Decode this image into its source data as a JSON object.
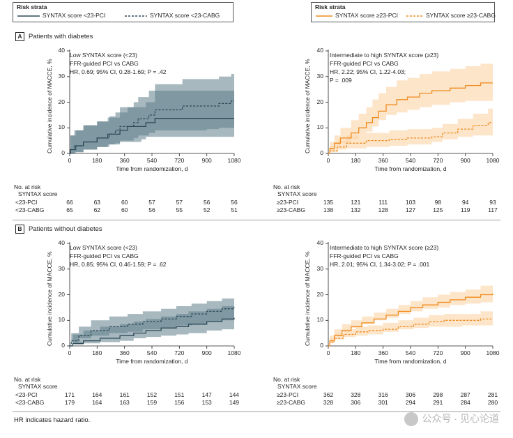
{
  "legend_left": {
    "title": "Risk strata",
    "items": [
      {
        "label": "SYNTAX score <23-PCI",
        "style": "solid"
      },
      {
        "label": "SYNTAX score <23-CABG",
        "style": "dashed"
      }
    ]
  },
  "legend_right": {
    "title": "Risk strata",
    "items": [
      {
        "label": "SYNTAX score ≥23-PCI",
        "style": "solid"
      },
      {
        "label": "SYNTAX score ≥23-CABG",
        "style": "dashed"
      }
    ]
  },
  "panel_a": {
    "letter": "A",
    "title": "Patients with diabetes"
  },
  "panel_b": {
    "letter": "B",
    "title": "Patients without diabetes"
  },
  "footnote": "HR indicates hazard ratio.",
  "watermark": "公众号 · 见心论道",
  "colors": {
    "low": "#2e4a57",
    "low_band": "#5f7d8b",
    "high": "#f08a1c",
    "high_band": "#fcd3a6"
  },
  "chart_data": [
    {
      "id": "a-low",
      "type": "line",
      "annotation": [
        "Low SYNTAX score (<23)",
        "FFR-guided PCI vs CABG",
        "HR, 0.69; 95% CI, 0.28-1.69; P = .42"
      ],
      "xlabel": "Time from randomization, d",
      "ylabel": "Cumulative incidence of MACCE, %",
      "xticks": [
        "0",
        "180",
        "360",
        "540",
        "720",
        "900",
        "1080"
      ],
      "yticks": [
        "0",
        "10",
        "20",
        "30",
        "40"
      ],
      "xlim": [
        0,
        1080
      ],
      "ylim": [
        0,
        40
      ],
      "color": "low",
      "series": [
        {
          "name": "SYNTAX score <23-PCI",
          "style": "solid",
          "x": [
            0,
            5,
            40,
            90,
            180,
            250,
            330,
            380,
            470,
            500,
            560,
            700,
            1080
          ],
          "y": [
            0,
            1.5,
            3.0,
            4.5,
            6.0,
            7.5,
            9.0,
            10.5,
            10.5,
            12.0,
            13.7,
            13.7,
            13.7
          ],
          "lower": [
            0,
            0,
            0,
            0.5,
            1.5,
            2.5,
            3.5,
            4.5,
            4.5,
            5.5,
            6.5,
            6.5,
            6.5
          ],
          "upper": [
            0,
            7,
            9,
            11,
            12.5,
            14,
            16,
            18,
            18,
            20,
            24.5,
            24.5,
            25
          ]
        },
        {
          "name": "SYNTAX score <23-CABG",
          "style": "dashed",
          "x": [
            0,
            5,
            30,
            90,
            180,
            260,
            300,
            330,
            420,
            450,
            520,
            560,
            740,
            900,
            980,
            1060,
            1080
          ],
          "y": [
            0,
            1.5,
            3.0,
            4.5,
            6.0,
            7.5,
            9.0,
            10.5,
            12.0,
            13.5,
            15.0,
            17.0,
            18.5,
            18.5,
            19.5,
            20.5,
            20.5
          ],
          "lower": [
            0,
            0,
            0,
            0.5,
            1.5,
            2.5,
            3.5,
            4.0,
            5.0,
            6.0,
            7.0,
            8.0,
            9.0,
            9.0,
            9.5,
            10.0,
            10.0
          ],
          "upper": [
            0,
            7,
            9,
            11,
            12.5,
            14.5,
            16,
            18,
            20,
            22,
            24.5,
            27,
            29,
            29,
            30,
            31,
            31
          ]
        }
      ],
      "risk_table": {
        "title": "No. at risk",
        "subtitle": "SYNTAX score",
        "rows": [
          {
            "label": "<23-PCI",
            "values": [
              "66",
              "63",
              "60",
              "57",
              "57",
              "56",
              "56"
            ]
          },
          {
            "label": "<23-CABG",
            "values": [
              "65",
              "62",
              "60",
              "56",
              "55",
              "52",
              "51"
            ]
          }
        ]
      }
    },
    {
      "id": "a-high",
      "type": "line",
      "annotation": [
        "Intermediate to high SYNTAX score (≥23)",
        "FFR-guided PCI vs CABG",
        "HR, 2.22; 95% CI, 1.22-4.03;",
        "P = .009"
      ],
      "xlabel": "Time from randomization, d",
      "ylabel": "Cumulative incidence of MACCE, %",
      "xticks": [
        "0",
        "180",
        "360",
        "540",
        "720",
        "900",
        "1080"
      ],
      "yticks": [
        "0",
        "10",
        "20",
        "30",
        "40"
      ],
      "xlim": [
        0,
        1080
      ],
      "ylim": [
        0,
        40
      ],
      "color": "high",
      "series": [
        {
          "name": "SYNTAX score ≥23-PCI",
          "style": "solid",
          "x": [
            0,
            10,
            40,
            80,
            150,
            200,
            250,
            290,
            330,
            380,
            450,
            520,
            600,
            680,
            800,
            900,
            1000,
            1080
          ],
          "y": [
            0,
            2,
            4,
            6,
            8,
            10,
            12,
            14,
            16.5,
            19,
            21,
            22,
            23.5,
            24.5,
            25.5,
            26.5,
            27.5,
            27.5
          ],
          "lower": [
            0,
            0.5,
            1.5,
            2.5,
            4,
            5.5,
            7,
            8.5,
            10.5,
            13,
            15,
            16,
            17,
            18,
            19,
            20,
            20.5,
            20.5
          ],
          "upper": [
            0,
            4.5,
            7,
            10,
            13,
            15.5,
            18,
            21,
            23.5,
            26,
            28.5,
            29.5,
            31,
            32,
            33,
            34,
            35,
            35
          ]
        },
        {
          "name": "SYNTAX score ≥23-CABG",
          "style": "dashed",
          "x": [
            0,
            10,
            60,
            120,
            250,
            400,
            520,
            680,
            750,
            850,
            950,
            1050,
            1080
          ],
          "y": [
            0,
            1,
            2.5,
            4,
            5,
            5.5,
            6,
            6.5,
            8,
            9.5,
            11,
            12,
            12
          ],
          "lower": [
            0,
            0,
            0.5,
            1.5,
            2,
            2.5,
            3,
            3.5,
            4.5,
            5.5,
            6.5,
            7,
            7
          ],
          "upper": [
            0,
            3,
            5,
            7,
            8,
            9,
            9.5,
            10,
            11.5,
            13.5,
            15.5,
            17.5,
            17.5
          ]
        }
      ],
      "risk_table": {
        "title": "No. at risk",
        "subtitle": "SYNTAX score",
        "rows": [
          {
            "label": "≥23-PCI",
            "values": [
              "135",
              "121",
              "111",
              "103",
              "98",
              "94",
              "93"
            ]
          },
          {
            "label": "≥23-CABG",
            "values": [
              "138",
              "132",
              "128",
              "127",
              "125",
              "119",
              "117"
            ]
          }
        ]
      }
    },
    {
      "id": "b-low",
      "type": "line",
      "annotation": [
        "Low SYNTAX score (<23)",
        "FFR-guided PCI vs CABG",
        "HR, 0.85; 95% CI, 0.46-1.59; P = .62"
      ],
      "xlabel": "Time from randomization, d",
      "ylabel": "Cumulative incidence of MACCE, %",
      "xticks": [
        "0",
        "180",
        "360",
        "540",
        "720",
        "900",
        "1080"
      ],
      "yticks": [
        "0",
        "10",
        "20",
        "30",
        "40"
      ],
      "xlim": [
        0,
        1080
      ],
      "ylim": [
        0,
        40
      ],
      "color": "low",
      "series": [
        {
          "name": "SYNTAX score <23-PCI",
          "style": "solid",
          "x": [
            0,
            20,
            90,
            200,
            330,
            420,
            500,
            600,
            700,
            780,
            900,
            1000,
            1080
          ],
          "y": [
            0,
            1,
            2,
            3,
            4,
            5,
            6,
            7,
            7.5,
            8.5,
            9.5,
            10.5,
            11
          ],
          "lower": [
            0,
            0,
            0.5,
            1,
            1.5,
            2,
            3,
            3.5,
            4,
            4.5,
            5,
            6,
            6.5
          ],
          "upper": [
            0,
            4.5,
            6,
            7.5,
            8.5,
            9.5,
            10.5,
            11.5,
            12.5,
            13.5,
            14.5,
            15.5,
            16.5
          ]
        },
        {
          "name": "SYNTAX score <23-CABG",
          "style": "dashed",
          "x": [
            0,
            10,
            60,
            140,
            260,
            380,
            480,
            600,
            700,
            800,
            900,
            1000,
            1080
          ],
          "y": [
            0,
            2,
            4,
            6,
            7.5,
            8.5,
            9.5,
            10.5,
            11.5,
            12.5,
            13.5,
            14.5,
            15
          ],
          "lower": [
            0,
            0.5,
            1.5,
            3,
            4,
            5,
            5.5,
            6.5,
            7,
            8,
            8.5,
            9.5,
            10
          ],
          "upper": [
            0,
            5,
            7.5,
            10,
            11.5,
            12.5,
            13.5,
            14.5,
            15.5,
            16.5,
            17.5,
            18.5,
            19.5
          ]
        }
      ],
      "risk_table": {
        "title": "No. at risk",
        "subtitle": "SYNTAX score",
        "rows": [
          {
            "label": "<23-PCI",
            "values": [
              "171",
              "164",
              "161",
              "152",
              "151",
              "147",
              "144"
            ]
          },
          {
            "label": "<23-CABG",
            "values": [
              "179",
              "164",
              "163",
              "159",
              "156",
              "153",
              "149"
            ]
          }
        ]
      }
    },
    {
      "id": "b-high",
      "type": "line",
      "annotation": [
        "Intermediate to high SYNTAX score (≥23)",
        "FFR-guided PCI vs CABG",
        "HR, 2.01; 95% CI, 1.34-3.02; P = .001"
      ],
      "xlabel": "Time from randomization, d",
      "ylabel": "Cumulative incidence of MACCE, %",
      "xticks": [
        "0",
        "180",
        "360",
        "540",
        "720",
        "900",
        "1080"
      ],
      "yticks": [
        "0",
        "10",
        "20",
        "30",
        "40"
      ],
      "xlim": [
        0,
        1080
      ],
      "ylim": [
        0,
        40
      ],
      "color": "high",
      "series": [
        {
          "name": "SYNTAX score ≥23-PCI",
          "style": "solid",
          "x": [
            0,
            10,
            40,
            90,
            150,
            220,
            300,
            380,
            460,
            540,
            620,
            720,
            800,
            900,
            1000,
            1080
          ],
          "y": [
            0,
            2,
            4,
            6,
            7.5,
            9,
            10.5,
            12,
            13.5,
            15,
            16,
            17,
            18,
            19,
            20,
            20.5
          ],
          "lower": [
            0,
            0.5,
            2,
            4,
            5.5,
            7,
            8.5,
            10,
            11,
            12.5,
            13.5,
            14.5,
            15,
            16,
            16.5,
            17
          ],
          "upper": [
            0,
            4,
            6.5,
            8.5,
            10,
            11.5,
            13,
            14.5,
            16,
            17.5,
            19,
            20,
            21,
            22,
            23.5,
            24
          ]
        },
        {
          "name": "SYNTAX score ≥23-CABG",
          "style": "dashed",
          "x": [
            0,
            10,
            40,
            100,
            180,
            260,
            360,
            460,
            560,
            660,
            760,
            880,
            1000,
            1080
          ],
          "y": [
            0,
            1.5,
            3,
            4.5,
            5.5,
            6,
            6.5,
            7.5,
            8.5,
            9.5,
            10,
            10,
            10.5,
            10.5
          ],
          "lower": [
            0,
            0,
            1,
            2.5,
            3.5,
            4,
            4.5,
            5.5,
            6.5,
            7,
            7.5,
            7.5,
            8,
            8
          ],
          "upper": [
            0,
            3,
            5,
            6.5,
            7.5,
            8,
            9,
            10,
            11,
            12,
            12.5,
            12.5,
            13.5,
            14
          ]
        }
      ],
      "risk_table": {
        "title": "No. at risk",
        "subtitle": "SYNTAX score",
        "rows": [
          {
            "label": "≥23-PCI",
            "values": [
              "362",
              "328",
              "316",
              "306",
              "298",
              "287",
              "281"
            ]
          },
          {
            "label": "≥23-CABG",
            "values": [
              "328",
              "306",
              "301",
              "294",
              "291",
              "284",
              "280"
            ]
          }
        ]
      }
    }
  ]
}
